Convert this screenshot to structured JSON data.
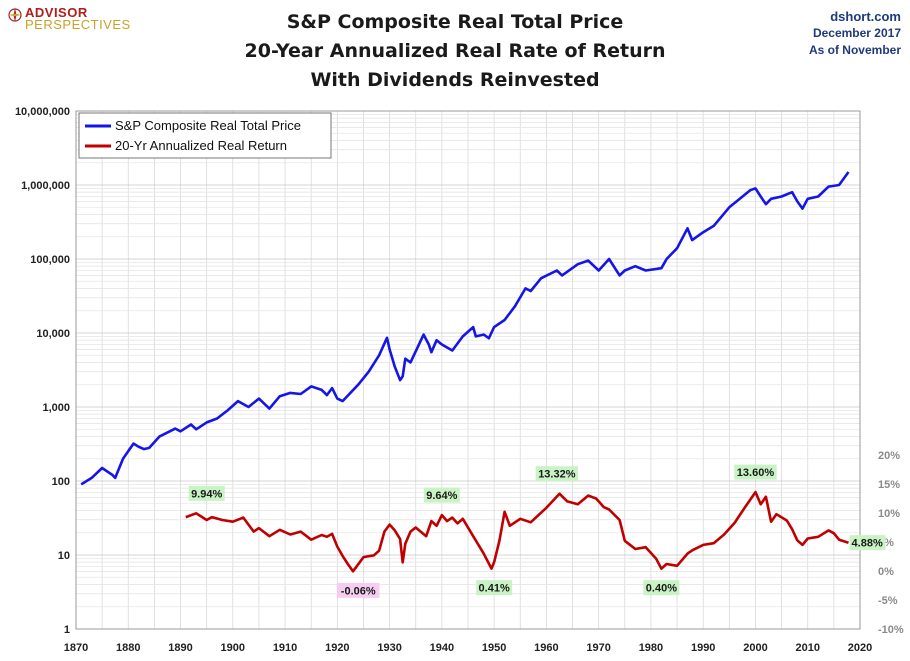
{
  "header": {
    "title_lines": [
      "S&P Composite Real Total Price",
      "20-Year Annualized Real Rate of Return",
      "With Dividends Reinvested"
    ],
    "logo_line1": "ADVISOR",
    "logo_line2": "PERSPECTIVES",
    "source_site": "dshort.com",
    "source_date": "December 2017",
    "source_asof": "As of November"
  },
  "colors": {
    "price": "#1515e8",
    "return": "#c00000",
    "positive_label_bg": "#c9f2c5",
    "negative_label_bg": "#f4cdf1",
    "grid": "#d9d9d9"
  },
  "chart_data": {
    "type": "line",
    "legend_placement": "top-left",
    "grid": true,
    "x_axis": {
      "min": 1870,
      "max": 2020,
      "ticks": [
        1870,
        1880,
        1890,
        1900,
        1910,
        1920,
        1930,
        1940,
        1950,
        1960,
        1970,
        1980,
        1990,
        2000,
        2010,
        2020
      ]
    },
    "y_left": {
      "scale": "log",
      "min": 1,
      "max": 10000000,
      "ticks": [
        "1",
        "10",
        "100",
        "1,000",
        "10,000",
        "100,000",
        "1,000,000",
        "10,000,000"
      ]
    },
    "y_right": {
      "min": -10,
      "max": 20,
      "unit": "%",
      "ticks": [
        "20%",
        "15%",
        "10%",
        "5%",
        "0%",
        "-5%",
        "-10%"
      ]
    },
    "series": [
      {
        "name": "S&P Composite Real Total Price",
        "axis": "left",
        "x": [
          1871,
          1873,
          1875,
          1877,
          1877.5,
          1879,
          1881,
          1882,
          1883,
          1884,
          1886,
          1889,
          1890,
          1892,
          1893,
          1895,
          1897,
          1899,
          1901,
          1903,
          1905,
          1907,
          1909,
          1911,
          1913,
          1915,
          1917,
          1918,
          1919,
          1920,
          1921,
          1924,
          1926,
          1928,
          1929.5,
          1930,
          1931,
          1932,
          1932.5,
          1933,
          1934,
          1936.5,
          1937.5,
          1938,
          1939,
          1940,
          1942,
          1944,
          1946,
          1946.5,
          1948,
          1949,
          1950,
          1952,
          1954,
          1956,
          1957,
          1959,
          1962,
          1963,
          1966,
          1968,
          1970,
          1972,
          1974,
          1975,
          1977,
          1979,
          1982,
          1983,
          1985,
          1987,
          1987.9,
          1990,
          1992,
          1995,
          1997,
          1999,
          2000,
          2001,
          2002,
          2003,
          2005,
          2007,
          2008,
          2009,
          2010,
          2012,
          2014,
          2016,
          2017.8
        ],
        "y": [
          90,
          110,
          150,
          120,
          110,
          200,
          320,
          290,
          270,
          280,
          400,
          510,
          470,
          580,
          500,
          620,
          700,
          900,
          1200,
          1000,
          1300,
          950,
          1400,
          1550,
          1500,
          1900,
          1700,
          1450,
          1800,
          1300,
          1200,
          2000,
          3000,
          5000,
          8600,
          6000,
          3500,
          2300,
          2600,
          4500,
          4000,
          9500,
          7000,
          5500,
          8000,
          7000,
          5800,
          9000,
          12000,
          9000,
          9500,
          8500,
          12000,
          15000,
          23000,
          40000,
          37000,
          55000,
          70000,
          60000,
          85000,
          95000,
          70000,
          100000,
          60000,
          70000,
          80000,
          70000,
          75000,
          100000,
          140000,
          260000,
          180000,
          230000,
          280000,
          500000,
          650000,
          850000,
          900000,
          700000,
          550000,
          650000,
          700000,
          800000,
          600000,
          480000,
          650000,
          700000,
          950000,
          1000000,
          1500000
        ]
      },
      {
        "name": "20-Yr Annualized Real Return",
        "axis": "right",
        "x": [
          1891,
          1893,
          1895,
          1896,
          1898,
          1900,
          1902,
          1904,
          1905,
          1907,
          1909,
          1911,
          1913,
          1915,
          1917,
          1918,
          1919,
          1920,
          1921,
          1922,
          1923,
          1925,
          1927,
          1928,
          1929,
          1930,
          1931,
          1932,
          1932.5,
          1933,
          1934,
          1935,
          1937,
          1938,
          1939,
          1940,
          1941,
          1942,
          1943,
          1944,
          1946,
          1948,
          1949.5,
          1950,
          1951,
          1952,
          1953,
          1955,
          1957,
          1960,
          1962.5,
          1964,
          1966,
          1968,
          1969.5,
          1971,
          1972,
          1974,
          1975,
          1977,
          1979,
          1981,
          1982,
          1983,
          1985,
          1987,
          1988,
          1990,
          1992,
          1994,
          1996,
          1998,
          2000,
          2001,
          2002,
          2003,
          2004,
          2006,
          2007,
          2008,
          2009,
          2010,
          2012,
          2014,
          2015,
          2016,
          2017.8
        ],
        "y": [
          9.3,
          9.94,
          8.8,
          9.3,
          8.8,
          8.5,
          9.2,
          6.8,
          7.4,
          6.0,
          7.1,
          6.3,
          6.8,
          5.4,
          6.2,
          5.9,
          6.4,
          4.2,
          2.6,
          1.2,
          -0.06,
          2.4,
          2.7,
          3.5,
          6.8,
          8.0,
          7.0,
          5.5,
          1.5,
          4.7,
          6.8,
          7.5,
          6.0,
          8.6,
          7.8,
          9.64,
          8.6,
          9.2,
          8.2,
          9.0,
          6.0,
          3.0,
          0.41,
          1.5,
          5.2,
          10.2,
          7.8,
          9.0,
          8.4,
          10.9,
          13.32,
          12.0,
          11.5,
          13.0,
          12.5,
          11.0,
          10.6,
          8.8,
          5.2,
          3.8,
          4.1,
          2.1,
          0.4,
          1.2,
          0.9,
          3.0,
          3.6,
          4.5,
          4.8,
          6.3,
          8.3,
          11.0,
          13.6,
          11.5,
          12.8,
          8.5,
          9.8,
          8.7,
          7.2,
          5.3,
          4.5,
          5.6,
          5.9,
          7.0,
          6.5,
          5.4,
          4.88
        ]
      }
    ],
    "annotations": [
      {
        "text": "9.94%",
        "x": 1895,
        "y": 9.94,
        "kind": "peak"
      },
      {
        "text": "-0.06%",
        "x": 1924,
        "y": -0.06,
        "kind": "trough"
      },
      {
        "text": "9.64%",
        "x": 1940,
        "y": 9.64,
        "kind": "peak"
      },
      {
        "text": "0.41%",
        "x": 1950,
        "y": 0.41,
        "kind": "trough"
      },
      {
        "text": "13.32%",
        "x": 1962,
        "y": 13.32,
        "kind": "peak"
      },
      {
        "text": "0.40%",
        "x": 1982,
        "y": 0.4,
        "kind": "trough"
      },
      {
        "text": "13.60%",
        "x": 2000,
        "y": 13.6,
        "kind": "peak"
      },
      {
        "text": "4.88%",
        "x": 2018,
        "y": 4.88,
        "kind": "last"
      }
    ]
  }
}
